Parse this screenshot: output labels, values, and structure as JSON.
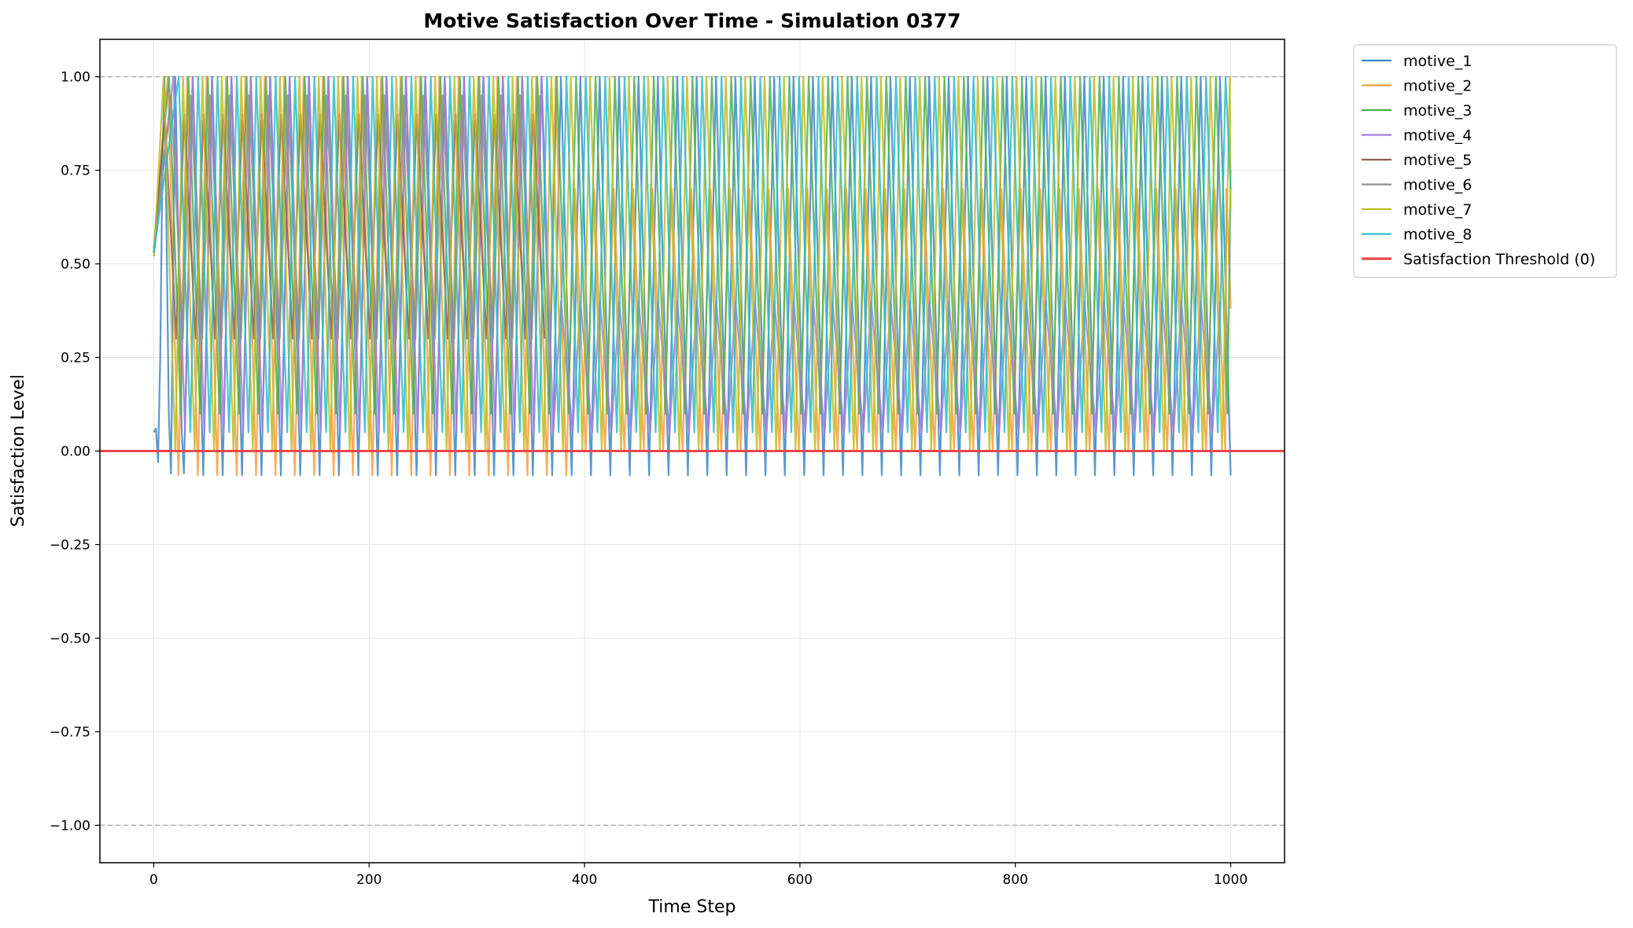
{
  "chart_data": {
    "type": "line",
    "title": "Motive Satisfaction Over Time - Simulation 0377",
    "xlabel": "Time Step",
    "ylabel": "Satisfaction Level",
    "xlim": [
      -50,
      1050
    ],
    "ylim": [
      -1.1,
      1.1
    ],
    "xticks": [
      0,
      200,
      400,
      600,
      800,
      1000
    ],
    "xtick_labels": [
      "0",
      "200",
      "400",
      "600",
      "800",
      "1000"
    ],
    "yticks": [
      1.0,
      0.75,
      0.5,
      0.25,
      0.0,
      -0.25,
      -0.5,
      -0.75,
      -1.0
    ],
    "ytick_labels": [
      "1.00",
      "0.75",
      "0.50",
      "0.25",
      "0.00",
      "−0.25",
      "−0.50",
      "−0.75",
      "−1.00"
    ],
    "grid": true,
    "legend_position": "outside-right-top",
    "reference_lines": [
      {
        "y": 1.0,
        "style": "dashed",
        "color": "#aaaaaa"
      },
      {
        "y": -1.0,
        "style": "dashed",
        "color": "#aaaaaa"
      }
    ],
    "threshold": {
      "name": "Satisfaction Threshold (0)",
      "y": 0.0,
      "color": "#e8474a"
    },
    "series": [
      {
        "name": "motive_1",
        "color": "#3d85c6",
        "period": 18,
        "min": -0.065,
        "max": 1.0,
        "peak_frac": 0.45,
        "phase": 14,
        "points": [
          [
            0,
            0.05
          ],
          [
            2,
            0.06
          ],
          [
            4,
            -0.03
          ],
          [
            6,
            0.25
          ],
          [
            8,
            0.75
          ],
          [
            10,
            1.0
          ],
          [
            12,
            0.55
          ],
          [
            14,
            0.1
          ],
          [
            16,
            -0.06
          ],
          [
            18,
            0.45
          ],
          [
            20,
            1.0
          ],
          [
            22,
            0.7
          ],
          [
            24,
            0.35
          ],
          [
            26,
            0.05
          ],
          [
            28,
            -0.06
          ]
        ]
      },
      {
        "name": "motive_2",
        "color": "#ff9a3d",
        "period": 18,
        "min": -0.065,
        "max": 1.0,
        "peak_frac": 0.45,
        "phase": 5,
        "late_max": 0.7,
        "late_min": 0.0,
        "points": [
          [
            996,
            0.7
          ],
          [
            998,
            0.55
          ],
          [
            1000,
            0.38
          ]
        ]
      },
      {
        "name": "motive_3",
        "color": "#4caf50",
        "period": 18,
        "min": 0.1,
        "max": 1.0,
        "peak_frac": 0.4,
        "phase": 7,
        "points": [
          [
            1000,
            0.75
          ]
        ]
      },
      {
        "name": "motive_4",
        "color": "#a77bd6",
        "period": 18,
        "min": 0.05,
        "max": 1.0,
        "peak_frac": 0.4,
        "phase": 11,
        "late_max": 0.4,
        "late_min": 0.05
      },
      {
        "name": "motive_5",
        "color": "#8c5f52",
        "period": 18,
        "min": 0.3,
        "max": 0.9,
        "peak_frac": 0.4,
        "phase": 3,
        "active_until": 370
      },
      {
        "name": "motive_6",
        "color": "#8f8f8f",
        "period": 18,
        "min": 0.3,
        "max": 0.95,
        "peak_frac": 0.4,
        "phase": 9,
        "active_until": 360
      },
      {
        "name": "motive_7",
        "color": "#bcbd22",
        "period": 18,
        "min": 0.0,
        "max": 1.0,
        "peak_frac": 0.4,
        "phase": 2,
        "points": [
          [
            1000,
            0.64
          ]
        ]
      },
      {
        "name": "motive_8",
        "color": "#2cbcc9",
        "period": 18,
        "min": 0.05,
        "max": 1.0,
        "peak_frac": 0.4,
        "phase": 16,
        "points": [
          [
            1000,
            0.7
          ]
        ]
      }
    ]
  }
}
